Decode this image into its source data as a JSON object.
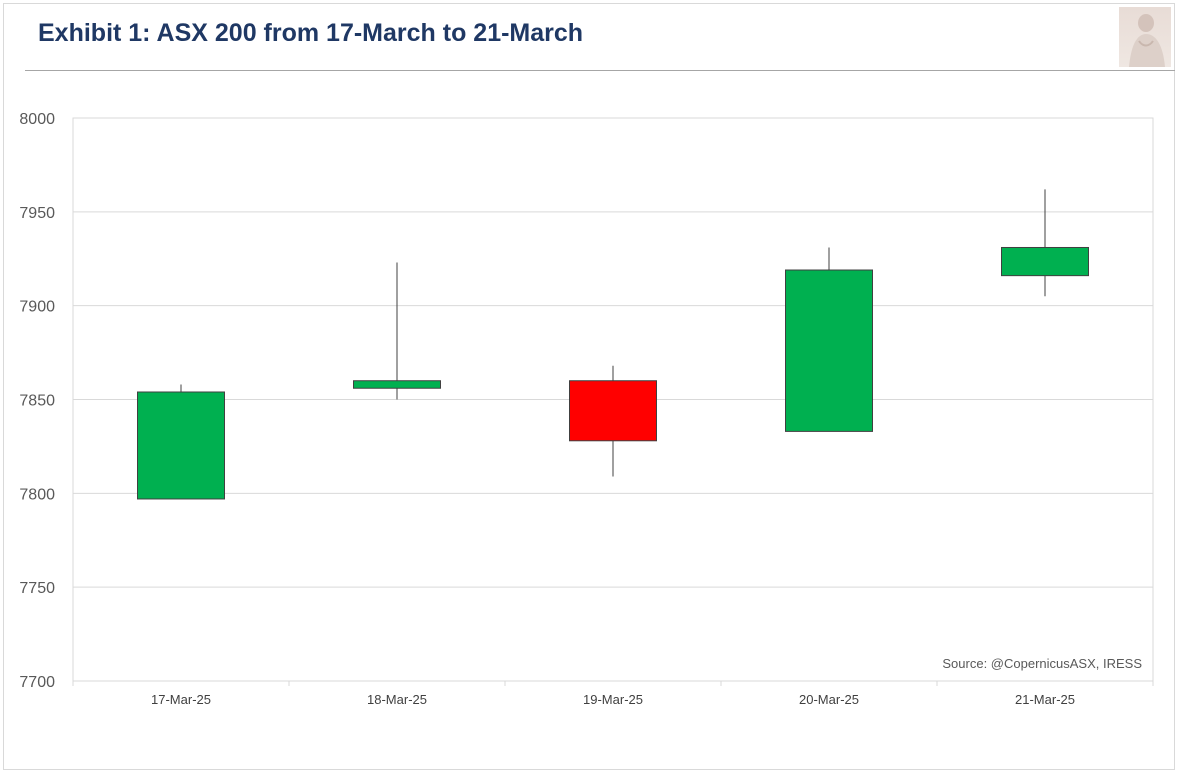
{
  "header": {
    "title": "Exhibit 1: ASX 200 from 17-March to 21-March",
    "logo_icon": "statue-portrait-icon"
  },
  "source_note": "Source: @CopernicusASX, IRESS",
  "colors": {
    "title": "#1f3864",
    "up": "#00b050",
    "down": "#ff0000",
    "gridline": "#d9d9d9",
    "axis_text": "#595959"
  },
  "chart_data": {
    "type": "candlestick",
    "title": "Exhibit 1: ASX 200 from 17-March to 21-March",
    "xlabel": "",
    "ylabel": "",
    "ylim": [
      7700,
      8000
    ],
    "yticks": [
      7700,
      7750,
      7800,
      7850,
      7900,
      7950,
      8000
    ],
    "grid": true,
    "categories": [
      "17-Mar-25",
      "18-Mar-25",
      "19-Mar-25",
      "20-Mar-25",
      "21-Mar-25"
    ],
    "series": [
      {
        "open": [
          7797,
          7856,
          7860,
          7833,
          7916
        ],
        "high": [
          7858,
          7923,
          7868,
          7931,
          7962
        ],
        "low": [
          7797,
          7850,
          7809,
          7833,
          7905
        ],
        "close": [
          7854,
          7860,
          7828,
          7919,
          7931
        ]
      }
    ]
  }
}
